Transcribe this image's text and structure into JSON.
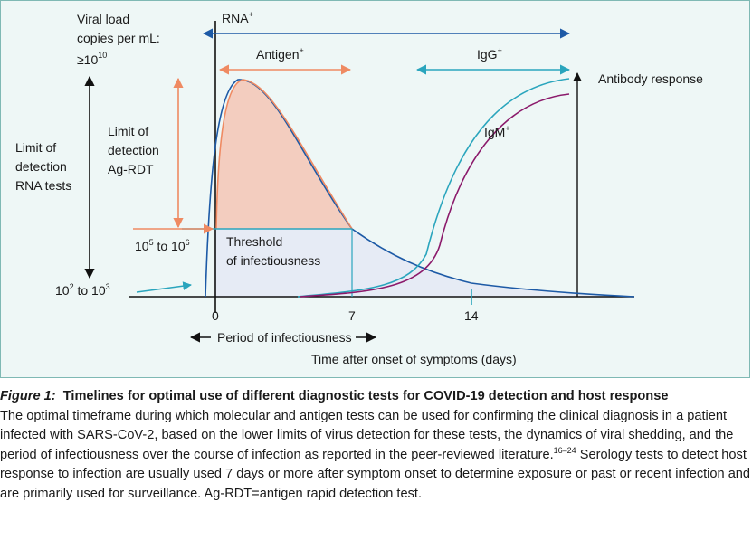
{
  "labels": {
    "viral_load_line1": "Viral load",
    "viral_load_line2": "copies per mL:",
    "viral_load_line3": "≥10",
    "viral_load_exp": "10",
    "rna_plus": "RNA",
    "antigen_plus": "Antigen",
    "igg_plus": "IgG",
    "igm_plus": "IgM",
    "plus_sign": "+",
    "antibody_response": "Antibody response",
    "limit_rna_line1": "Limit of",
    "limit_rna_line2": "detection",
    "limit_rna_line3": "RNA tests",
    "limit_ag_line1": "Limit of",
    "limit_ag_line2": "detection",
    "limit_ag_line3": "Ag-RDT",
    "threshold_line1": "Threshold",
    "threshold_line2": "of infectiousness",
    "range_high_a": "10",
    "range_high_a_exp": "5",
    "range_high_mid": " to 10",
    "range_high_b_exp": "6",
    "range_low_a": "10",
    "range_low_a_exp": "2",
    "range_low_mid": " to 10",
    "range_low_b_exp": "3",
    "tick_0": "0",
    "tick_7": "7",
    "tick_14": "14",
    "period_infectiousness": "Period of infectiousness",
    "x_axis_title": "Time after onset of symptoms (days)"
  },
  "colors": {
    "panel_bg": "#eef7f6",
    "panel_border": "#7fb9b4",
    "rna_blue": "#1d5aa6",
    "antigen_orange": "#ef8a62",
    "antigen_fill": "#f3cdbf",
    "infectious_fill": "#e6ebf5",
    "igg_teal": "#2aa5bd",
    "igm_purple": "#8b1a6b",
    "axis_black": "#111111"
  },
  "caption": {
    "label": "Figure 1:",
    "title": "Timelines for optimal use of different diagnostic tests for COVID-19 detection and host response",
    "body_part1": "The optimal timeframe during which molecular and antigen tests can be used for confirming the clinical diagnosis in a patient infected with SARS-CoV-2, based on the lower limits of virus detection for these tests, the dynamics of viral shedding, and the period of infectiousness over the course of infection as reported in the peer-reviewed literature.",
    "ref1": "16–24",
    "body_part2": " Serology tests to detect host response to infection are usually used 7 days or more after symptom onset to determine exposure or past or recent infection and are primarily used for surveillance. Ag-RDT=antigen rapid detection test."
  }
}
